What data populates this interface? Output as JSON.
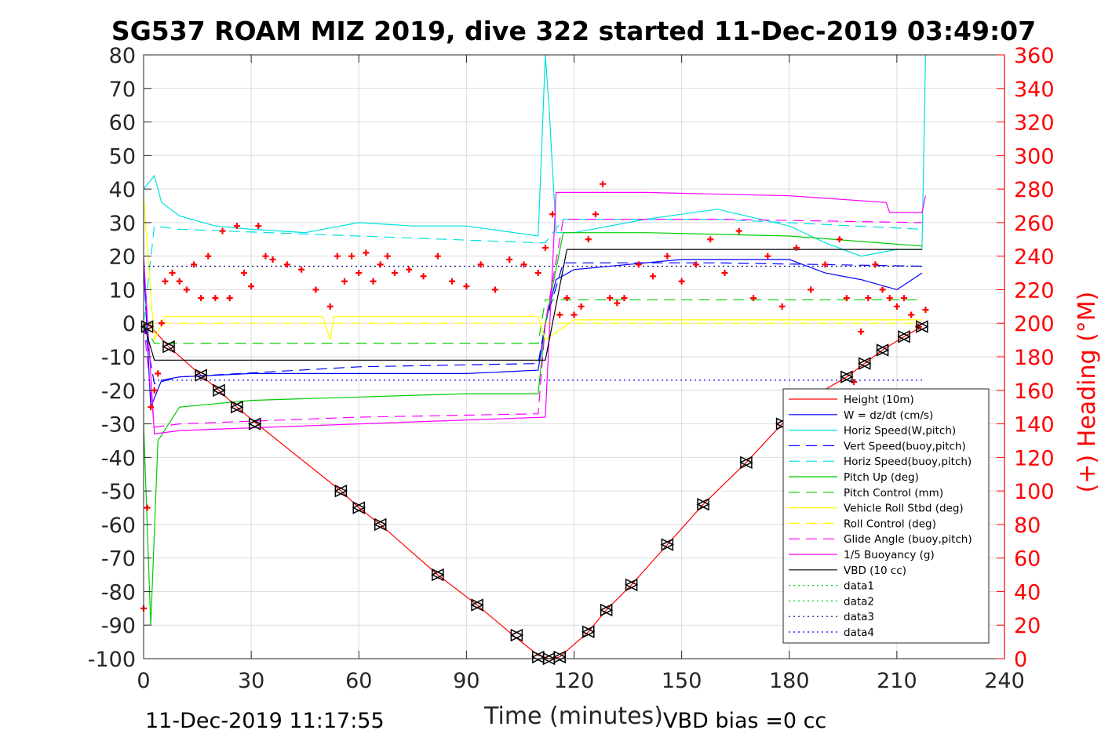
{
  "chart_data": {
    "type": "line",
    "title": "SG537 ROAM MIZ 2019, dive 322 started 11-Dec-2019 03:49:07",
    "xlabel": "Time (minutes)",
    "ylabel_right": "(+) Heading (°M)",
    "xlim": [
      0,
      240
    ],
    "ylim": [
      -100,
      80
    ],
    "ylim_right": [
      0,
      360
    ],
    "xticks": [
      "0",
      "30",
      "60",
      "90",
      "120",
      "150",
      "180",
      "210",
      "240"
    ],
    "yticks": [
      "80",
      "70",
      "60",
      "50",
      "40",
      "30",
      "20",
      "10",
      "0",
      "-10",
      "-20",
      "-30",
      "-40",
      "-50",
      "-60",
      "-70",
      "-80",
      "-90",
      "-100"
    ],
    "yticks_right": [
      "360",
      "340",
      "320",
      "300",
      "280",
      "260",
      "240",
      "220",
      "200",
      "180",
      "160",
      "140",
      "120",
      "100",
      "80",
      "60",
      "40",
      "20",
      "0"
    ],
    "grid": true,
    "legend_position": "bottom-right",
    "footer_left": "11-Dec-2019 11:17:55",
    "footer_right": "VBD bias =0 cc",
    "series": [
      {
        "name": "Height (10m)",
        "color": "#ff0000",
        "style": "solid",
        "x": [
          0,
          2,
          7,
          16,
          21,
          26,
          31,
          55,
          60,
          66,
          82,
          93,
          103,
          110,
          113,
          116,
          124,
          129,
          136,
          146,
          156,
          168,
          178,
          188,
          196,
          201,
          206,
          212,
          217
        ],
        "y": [
          0,
          -1,
          -7,
          -15.5,
          -20,
          -25,
          -29.5,
          -50,
          -55,
          -60,
          -75,
          -84,
          -93,
          -99,
          -100,
          -99.5,
          -92,
          -85.5,
          -78,
          -66,
          -54,
          -41.5,
          -30,
          -21,
          -16,
          -12,
          -8,
          -4,
          -1
        ]
      },
      {
        "name": "W = dz/dt (cm/s)",
        "color": "#0000ff",
        "style": "solid",
        "x": [
          0,
          2,
          5,
          10,
          30,
          60,
          90,
          110,
          112,
          115,
          120,
          150,
          180,
          190,
          200,
          210,
          217
        ],
        "y": [
          18,
          -25,
          -17,
          -16,
          -15,
          -15,
          -15,
          -14,
          0,
          13,
          16,
          19,
          19,
          15,
          13,
          10,
          15
        ]
      },
      {
        "name": "Horiz Speed(W,pitch)",
        "color": "#00e0e0",
        "style": "solid",
        "x": [
          0,
          3,
          5,
          10,
          20,
          30,
          45,
          60,
          75,
          90,
          110,
          112,
          113,
          115,
          120,
          140,
          160,
          180,
          190,
          200,
          210,
          217,
          218
        ],
        "y": [
          40,
          44,
          36,
          32,
          29,
          28,
          27,
          30,
          29,
          29,
          26,
          80,
          65,
          27,
          27,
          31,
          34,
          29,
          24,
          20,
          22,
          22,
          80
        ]
      },
      {
        "name": "Vert Speed(buoy,pitch)",
        "color": "#0000ff",
        "style": "dashed",
        "x": [
          0,
          3,
          10,
          60,
          110,
          112,
          117,
          160,
          217
        ],
        "y": [
          0,
          -18,
          -16,
          -13,
          -12,
          0,
          18,
          18,
          17
        ]
      },
      {
        "name": "Horiz Speed(buoy,pitch)",
        "color": "#00e0e0",
        "style": "dashed",
        "x": [
          0,
          3,
          10,
          60,
          110,
          112,
          117,
          160,
          217
        ],
        "y": [
          0,
          29,
          28,
          26,
          24,
          24,
          31,
          31,
          28
        ]
      },
      {
        "name": "Pitch Up (deg)",
        "color": "#00cc00",
        "style": "solid",
        "x": [
          0,
          2,
          4,
          10,
          30,
          60,
          90,
          110,
          112,
          117,
          140,
          180,
          217
        ],
        "y": [
          -30,
          -90,
          -35,
          -25,
          -23,
          -22,
          -21,
          -21,
          0,
          27,
          27,
          26,
          23
        ]
      },
      {
        "name": "Pitch Control (mm)",
        "color": "#00cc00",
        "style": "dashed",
        "x": [
          0,
          3,
          10,
          110,
          112,
          117,
          217
        ],
        "y": [
          0,
          -6,
          -6,
          -6,
          7,
          7,
          7
        ]
      },
      {
        "name": "Vehicle Roll Stbd (deg)",
        "color": "#ffff00",
        "style": "solid",
        "x": [
          0,
          3,
          6,
          10,
          50,
          52,
          53,
          60,
          110,
          112,
          120,
          217
        ],
        "y": [
          38,
          -5,
          2,
          2,
          2,
          -5,
          2,
          2,
          2,
          -5,
          1,
          1
        ]
      },
      {
        "name": "Roll Control (deg)",
        "color": "#ffff00",
        "style": "dashed",
        "x": [
          0,
          217
        ],
        "y": [
          0,
          0
        ]
      },
      {
        "name": "Glide Angle (buoy,pitch)",
        "color": "#ff00ff",
        "style": "dashed",
        "x": [
          0,
          3,
          10,
          60,
          110,
          112,
          117,
          160,
          217
        ],
        "y": [
          0,
          -31,
          -30,
          -28,
          -27,
          0,
          31,
          31,
          30
        ]
      },
      {
        "name": "1/5 Buoyancy (g)",
        "color": "#ff00ff",
        "style": "solid",
        "x": [
          0,
          3,
          10,
          60,
          112,
          115,
          140,
          180,
          207,
          208,
          217,
          218
        ],
        "y": [
          20,
          -33,
          -32,
          -30,
          -28,
          39,
          39,
          38,
          36,
          33,
          33,
          38
        ]
      },
      {
        "name": "VBD (10 cc)",
        "color": "#000000",
        "style": "solid",
        "x": [
          0,
          3,
          112,
          118,
          217
        ],
        "y": [
          0,
          -11,
          -11,
          22,
          22
        ]
      },
      {
        "name": "data1",
        "color": "#00cc00",
        "style": "dotted",
        "x": [],
        "y": []
      },
      {
        "name": "data2",
        "color": "#00cc00",
        "style": "dotted",
        "x": [],
        "y": []
      },
      {
        "name": "data3",
        "color": "#000080",
        "style": "dotted",
        "x": [
          0,
          217
        ],
        "y": [
          17,
          17
        ]
      },
      {
        "name": "data4",
        "color": "#0000ff",
        "style": "dotted",
        "x": [
          0,
          217
        ],
        "y": [
          -17,
          -17
        ]
      }
    ],
    "heading": {
      "name": "Heading",
      "color": "#ff0000",
      "marker": "+",
      "x": [
        0,
        1,
        2,
        3,
        4,
        5,
        6,
        8,
        10,
        12,
        14,
        16,
        18,
        20,
        22,
        24,
        26,
        28,
        30,
        32,
        34,
        36,
        40,
        44,
        48,
        52,
        54,
        56,
        58,
        60,
        62,
        64,
        66,
        68,
        70,
        74,
        78,
        82,
        86,
        90,
        94,
        98,
        102,
        106,
        110,
        112,
        114,
        116,
        118,
        120,
        122,
        124,
        126,
        128,
        130,
        132,
        134,
        138,
        142,
        146,
        150,
        154,
        158,
        162,
        166,
        170,
        174,
        178,
        182,
        186,
        190,
        194,
        196,
        198,
        200,
        202,
        204,
        206,
        208,
        210,
        212,
        214,
        216,
        218
      ],
      "y": [
        30,
        90,
        150,
        160,
        170,
        200,
        225,
        230,
        225,
        220,
        235,
        215,
        240,
        215,
        255,
        215,
        258,
        230,
        222,
        258,
        240,
        238,
        235,
        232,
        220,
        210,
        240,
        225,
        240,
        230,
        242,
        225,
        235,
        240,
        230,
        232,
        228,
        240,
        225,
        222,
        235,
        220,
        238,
        235,
        230,
        245,
        265,
        205,
        215,
        205,
        210,
        250,
        265,
        283,
        215,
        212,
        215,
        235,
        228,
        240,
        225,
        235,
        250,
        230,
        255,
        215,
        240,
        210,
        245,
        220,
        235,
        250,
        215,
        165,
        195,
        215,
        235,
        220,
        215,
        210,
        215,
        205,
        198,
        208
      ]
    },
    "triangles": {
      "x": [
        1,
        7,
        16,
        21,
        26,
        31,
        55,
        60,
        66,
        82,
        93,
        104,
        110,
        113,
        116,
        124,
        129,
        136,
        146,
        156,
        168,
        178,
        196,
        201,
        206,
        212,
        217
      ],
      "y": [
        -1,
        -7,
        -15.5,
        -20,
        -25,
        -30,
        -50,
        -55,
        -60,
        -75,
        -84,
        -93,
        -99.5,
        -100,
        -99.5,
        -92,
        -85.5,
        -78,
        -66,
        -54,
        -41.5,
        -30,
        -16,
        -12,
        -8,
        -4,
        -1
      ]
    }
  }
}
